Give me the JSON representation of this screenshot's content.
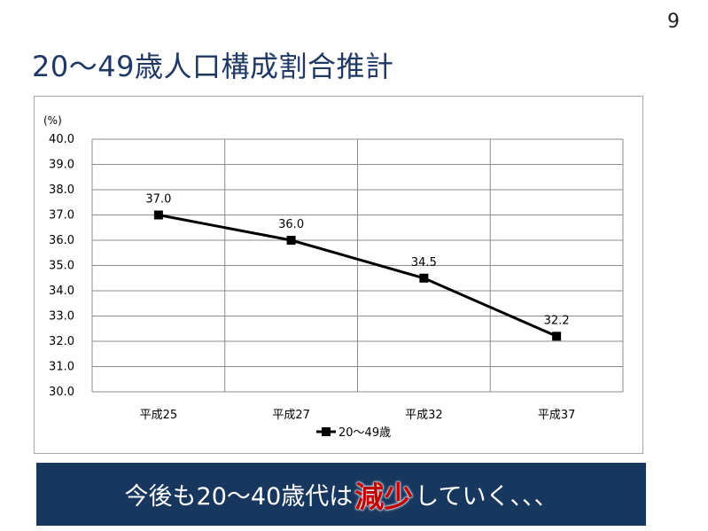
{
  "slide": {
    "page_number": "9",
    "title": "20～49歳人口構成割合推計"
  },
  "banner": {
    "before": "今後も20～40歳代は",
    "emphasis": "減少",
    "after": "していく、、、",
    "emphasis_color": "#c00000",
    "background_color": "#17375e"
  },
  "chart_data": {
    "type": "line",
    "title": "",
    "unit_label": "(%)",
    "xlabel": "",
    "ylabel": "",
    "categories": [
      "平成25",
      "平成27",
      "平成32",
      "平成37"
    ],
    "series": [
      {
        "name": "20～49歳",
        "values": [
          37.0,
          36.0,
          34.5,
          32.2
        ],
        "value_labels": [
          "37.0",
          "36.0",
          "34.5",
          "32.2"
        ],
        "marker": "square",
        "color": "#000000"
      }
    ],
    "ylim": [
      30.0,
      40.0
    ],
    "y_ticks": [
      "30.0",
      "31.0",
      "32.0",
      "33.0",
      "34.0",
      "35.0",
      "36.0",
      "37.0",
      "38.0",
      "39.0",
      "40.0"
    ],
    "grid": true,
    "legend": "bottom"
  }
}
